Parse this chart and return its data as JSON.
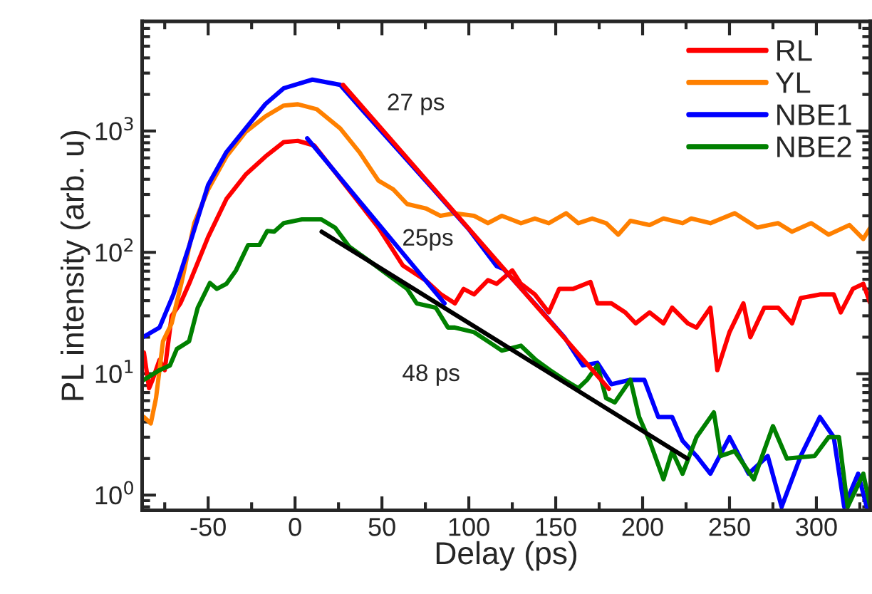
{
  "chart_data": {
    "type": "line",
    "xlabel": "Delay (ps)",
    "ylabel": "PL intensity (arb. u)",
    "log": "y",
    "xlim": [
      -88,
      331
    ],
    "xticks": [
      -50,
      0,
      50,
      100,
      150,
      200,
      250,
      300
    ],
    "ylim": [
      0.75,
      8000
    ],
    "yticks": [
      {
        "value": 1,
        "label": "10$^{0}$"
      },
      {
        "value": 10,
        "label": "10$^{1}$"
      },
      {
        "value": 100,
        "label": "10$^{2}$"
      },
      {
        "value": 1000,
        "label": "10$^{3}$"
      }
    ],
    "legend": "top right",
    "grid": false,
    "annotations": [
      "27 ps",
      "25ps",
      "48 ps"
    ],
    "series": [
      {
        "name": "RL",
        "color": "#ff0000",
        "x": [
          -87,
          -84,
          -82,
          -78,
          -75,
          -71,
          -66,
          -61,
          -50,
          -39.5,
          -28.5,
          -17,
          -6.5,
          1.6,
          11,
          48,
          62,
          75,
          84,
          92,
          97,
          103,
          111,
          116,
          125,
          130,
          138,
          146,
          152,
          160,
          170,
          174,
          182,
          190,
          196,
          204,
          212,
          217,
          226,
          231,
          239,
          243,
          250,
          258,
          262,
          270,
          278,
          286,
          291,
          302,
          310,
          314,
          321,
          327,
          331
        ],
        "values": [
          15,
          7.6,
          8.9,
          13,
          10.7,
          30,
          38,
          55,
          134,
          275,
          436,
          617,
          810,
          830,
          760,
          160,
          78,
          59,
          45,
          38,
          50,
          45,
          59,
          55,
          71,
          55,
          45,
          32,
          50,
          50,
          57,
          38,
          38,
          32,
          26,
          32,
          26,
          35,
          26,
          24,
          35,
          10.7,
          22,
          38,
          20,
          35,
          35,
          26,
          42,
          45,
          45,
          32,
          50,
          55,
          38
        ]
      },
      {
        "name": "YL",
        "color": "#ff8000",
        "x": [
          -87,
          -83,
          -80,
          -76,
          -71,
          -65.5,
          -58,
          -50,
          -39.5,
          -28.5,
          -17,
          -6.5,
          1.6,
          12.5,
          26,
          37,
          48,
          56.5,
          64.5,
          75.4,
          83.6,
          92,
          103,
          111,
          119,
          130,
          138,
          146,
          156,
          163,
          171,
          179,
          186,
          193,
          204,
          212,
          223,
          228,
          239,
          253,
          266,
          278,
          286,
          297,
          307,
          319,
          327,
          331
        ],
        "values": [
          4.4,
          3.9,
          6.3,
          18.5,
          26,
          55,
          174,
          330,
          617,
          980,
          1320,
          1620,
          1660,
          1510,
          1050,
          670,
          390,
          330,
          250,
          230,
          200,
          210,
          200,
          174,
          200,
          174,
          190,
          174,
          210,
          174,
          190,
          174,
          140,
          182,
          168,
          190,
          174,
          190,
          174,
          210,
          160,
          174,
          148,
          174,
          140,
          168,
          129,
          160
        ]
      },
      {
        "name": "NBE1",
        "color": "#0000ff",
        "x": [
          -87.5,
          -78,
          -70,
          -61,
          -50,
          -39.5,
          -28.5,
          -17,
          -6.5,
          10,
          26,
          40,
          60,
          80,
          100,
          116,
          120,
          140,
          155,
          165.6,
          174,
          182,
          193,
          201,
          209,
          217,
          223,
          231,
          239,
          250,
          261,
          272,
          280,
          291,
          302,
          310,
          316,
          324,
          329
        ],
        "values": [
          20,
          24,
          45,
          112,
          360,
          670,
          1050,
          1670,
          2250,
          2650,
          2400,
          1420,
          680,
          325,
          155,
          77,
          73,
          35,
          20,
          11.7,
          12.3,
          8.2,
          8.9,
          8.9,
          4.4,
          4.4,
          2.8,
          2.1,
          1.5,
          3.0,
          1.5,
          2.1,
          0.8,
          2.1,
          4.4,
          3.0,
          0.8,
          1.5,
          0.8
        ]
      },
      {
        "name": "NBE2",
        "color": "#008000",
        "x": [
          -87,
          -78,
          -72,
          -68,
          -61,
          -56,
          -49,
          -45,
          -39.5,
          -34,
          -27,
          -20.5,
          -16,
          -12,
          -6.5,
          4,
          15,
          23,
          31,
          42.6,
          53,
          64.5,
          70,
          81,
          88,
          92,
          103,
          111,
          119,
          130,
          138.5,
          146.7,
          155,
          163,
          168,
          174,
          179,
          184,
          193,
          198,
          204,
          212,
          217,
          223,
          231,
          241,
          245,
          253,
          264,
          275,
          283,
          299,
          307,
          313,
          318,
          327,
          331
        ],
        "values": [
          8.9,
          10.7,
          11.7,
          16,
          18.5,
          35,
          56,
          50,
          55,
          71,
          115,
          115,
          150,
          148,
          174,
          187,
          187,
          160,
          112,
          85,
          66,
          50,
          38,
          35,
          24,
          24,
          22,
          18.5,
          15.5,
          17,
          13,
          10.7,
          8.9,
          7.6,
          8.9,
          11.7,
          6.3,
          5.8,
          8.9,
          4.4,
          2.8,
          1.35,
          2.3,
          1.5,
          3.0,
          4.8,
          2.1,
          2.3,
          1.35,
          3.7,
          2.0,
          2.1,
          3.0,
          3.0,
          0.8,
          1.5,
          0.8
        ]
      },
      {
        "type": "line",
        "color": "#ff0000",
        "x": [
          27.6,
          180.6
        ],
        "values": [
          2400,
          7.5
        ]
      },
      {
        "type": "line",
        "color": "#0000ff",
        "x": [
          7,
          86
        ],
        "values": [
          870,
          38
        ]
      },
      {
        "type": "line",
        "color": "#000000",
        "x": [
          15.3,
          225.7
        ],
        "values": [
          148,
          2.0
        ]
      }
    ]
  }
}
